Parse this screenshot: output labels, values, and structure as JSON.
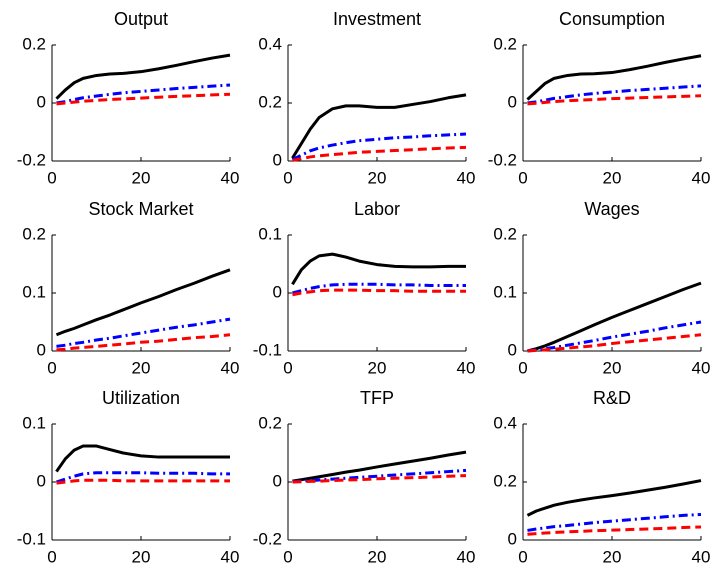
{
  "chart_data": [
    {
      "type": "line",
      "title": "Output",
      "x": [
        1,
        3,
        5,
        7,
        10,
        13,
        16,
        20,
        24,
        28,
        32,
        36,
        40
      ],
      "xlim": [
        0,
        40
      ],
      "xticks": [
        0,
        20,
        40
      ],
      "ylim": [
        -0.2,
        0.2
      ],
      "yticks": [
        -0.2,
        0,
        0.2
      ],
      "series": [
        {
          "color": "#000000",
          "dash": "solid",
          "values": [
            0.015,
            0.045,
            0.07,
            0.085,
            0.095,
            0.1,
            0.102,
            0.108,
            0.118,
            0.13,
            0.143,
            0.155,
            0.165
          ]
        },
        {
          "color": "#0000ff",
          "dash": "dashdot",
          "values": [
            0,
            0.005,
            0.012,
            0.018,
            0.024,
            0.03,
            0.035,
            0.04,
            0.045,
            0.05,
            0.054,
            0.058,
            0.062
          ]
        },
        {
          "color": "#ff0000",
          "dash": "dashed",
          "values": [
            -0.003,
            0,
            0.003,
            0.006,
            0.009,
            0.012,
            0.014,
            0.017,
            0.02,
            0.023,
            0.025,
            0.028,
            0.03
          ]
        }
      ]
    },
    {
      "type": "line",
      "title": "Investment",
      "x": [
        1,
        3,
        5,
        7,
        10,
        13,
        16,
        20,
        24,
        28,
        32,
        36,
        40
      ],
      "xlim": [
        0,
        40
      ],
      "xticks": [
        0,
        20,
        40
      ],
      "ylim": [
        0,
        0.4
      ],
      "yticks": [
        0,
        0.2,
        0.4
      ],
      "series": [
        {
          "color": "#000000",
          "dash": "solid",
          "values": [
            0.01,
            0.06,
            0.11,
            0.15,
            0.18,
            0.19,
            0.19,
            0.185,
            0.185,
            0.195,
            0.205,
            0.218,
            0.228
          ]
        },
        {
          "color": "#0000ff",
          "dash": "dashdot",
          "values": [
            0.005,
            0.02,
            0.035,
            0.045,
            0.055,
            0.063,
            0.07,
            0.075,
            0.08,
            0.083,
            0.087,
            0.09,
            0.093
          ]
        },
        {
          "color": "#ff0000",
          "dash": "dashed",
          "values": [
            0.002,
            0.008,
            0.014,
            0.018,
            0.022,
            0.026,
            0.03,
            0.033,
            0.036,
            0.039,
            0.042,
            0.045,
            0.047
          ]
        }
      ]
    },
    {
      "type": "line",
      "title": "Consumption",
      "x": [
        1,
        3,
        5,
        7,
        10,
        13,
        16,
        20,
        24,
        28,
        32,
        36,
        40
      ],
      "xlim": [
        0,
        40
      ],
      "xticks": [
        0,
        20,
        40
      ],
      "ylim": [
        -0.2,
        0.2
      ],
      "yticks": [
        -0.2,
        0,
        0.2
      ],
      "series": [
        {
          "color": "#000000",
          "dash": "solid",
          "values": [
            0.012,
            0.04,
            0.068,
            0.085,
            0.095,
            0.1,
            0.101,
            0.105,
            0.115,
            0.127,
            0.14,
            0.152,
            0.163
          ]
        },
        {
          "color": "#0000ff",
          "dash": "dashdot",
          "values": [
            0,
            0.004,
            0.01,
            0.016,
            0.022,
            0.028,
            0.033,
            0.038,
            0.043,
            0.047,
            0.051,
            0.055,
            0.059
          ]
        },
        {
          "color": "#ff0000",
          "dash": "dashed",
          "values": [
            -0.003,
            -0.001,
            0.002,
            0.005,
            0.008,
            0.01,
            0.012,
            0.015,
            0.017,
            0.019,
            0.021,
            0.023,
            0.025
          ]
        }
      ]
    },
    {
      "type": "line",
      "title": "Stock Market",
      "x": [
        1,
        3,
        5,
        7,
        10,
        13,
        16,
        20,
        24,
        28,
        32,
        36,
        40
      ],
      "xlim": [
        0,
        40
      ],
      "xticks": [
        0,
        20,
        40
      ],
      "ylim": [
        0,
        0.2
      ],
      "yticks": [
        0,
        0.1,
        0.2
      ],
      "series": [
        {
          "color": "#000000",
          "dash": "solid",
          "values": [
            0.028,
            0.034,
            0.039,
            0.045,
            0.054,
            0.062,
            0.071,
            0.083,
            0.094,
            0.106,
            0.117,
            0.129,
            0.14
          ]
        },
        {
          "color": "#0000ff",
          "dash": "dashdot",
          "values": [
            0.008,
            0.01,
            0.013,
            0.015,
            0.019,
            0.022,
            0.026,
            0.031,
            0.036,
            0.041,
            0.045,
            0.05,
            0.055
          ]
        },
        {
          "color": "#ff0000",
          "dash": "dashed",
          "values": [
            0.002,
            0.003,
            0.005,
            0.006,
            0.008,
            0.01,
            0.012,
            0.015,
            0.017,
            0.02,
            0.023,
            0.025,
            0.028
          ]
        }
      ]
    },
    {
      "type": "line",
      "title": "Labor",
      "x": [
        1,
        3,
        5,
        7,
        10,
        13,
        16,
        20,
        24,
        28,
        32,
        36,
        40
      ],
      "xlim": [
        0,
        40
      ],
      "xticks": [
        0,
        20,
        40
      ],
      "ylim": [
        -0.1,
        0.1
      ],
      "yticks": [
        -0.1,
        0,
        0.1
      ],
      "series": [
        {
          "color": "#000000",
          "dash": "solid",
          "values": [
            0.015,
            0.04,
            0.055,
            0.064,
            0.067,
            0.062,
            0.055,
            0.049,
            0.046,
            0.045,
            0.045,
            0.046,
            0.046
          ]
        },
        {
          "color": "#0000ff",
          "dash": "dashdot",
          "values": [
            0,
            0.004,
            0.008,
            0.011,
            0.014,
            0.015,
            0.015,
            0.015,
            0.014,
            0.014,
            0.013,
            0.013,
            0.013
          ]
        },
        {
          "color": "#ff0000",
          "dash": "dashed",
          "values": [
            -0.003,
            0,
            0.002,
            0.004,
            0.005,
            0.005,
            0.005,
            0.004,
            0.004,
            0.003,
            0.003,
            0.003,
            0.003
          ]
        }
      ]
    },
    {
      "type": "line",
      "title": "Wages",
      "x": [
        1,
        3,
        5,
        7,
        10,
        13,
        16,
        20,
        24,
        28,
        32,
        36,
        40
      ],
      "xlim": [
        0,
        40
      ],
      "xticks": [
        0,
        20,
        40
      ],
      "ylim": [
        0,
        0.2
      ],
      "yticks": [
        0,
        0.1,
        0.2
      ],
      "series": [
        {
          "color": "#000000",
          "dash": "solid",
          "values": [
            0,
            0.004,
            0.009,
            0.015,
            0.025,
            0.035,
            0.045,
            0.058,
            0.07,
            0.082,
            0.094,
            0.106,
            0.117
          ]
        },
        {
          "color": "#0000ff",
          "dash": "dashdot",
          "values": [
            0,
            0.002,
            0.004,
            0.006,
            0.01,
            0.014,
            0.018,
            0.024,
            0.029,
            0.034,
            0.04,
            0.045,
            0.05
          ]
        },
        {
          "color": "#ff0000",
          "dash": "dashed",
          "values": [
            0,
            0.001,
            0.002,
            0.003,
            0.005,
            0.007,
            0.009,
            0.013,
            0.016,
            0.019,
            0.022,
            0.025,
            0.028
          ]
        }
      ]
    },
    {
      "type": "line",
      "title": "Utilization",
      "x": [
        1,
        3,
        5,
        7,
        10,
        13,
        16,
        20,
        24,
        28,
        32,
        36,
        40
      ],
      "xlim": [
        0,
        40
      ],
      "xticks": [
        0,
        20,
        40
      ],
      "ylim": [
        -0.1,
        0.1
      ],
      "yticks": [
        -0.1,
        0,
        0.1
      ],
      "series": [
        {
          "color": "#000000",
          "dash": "solid",
          "values": [
            0.018,
            0.04,
            0.055,
            0.062,
            0.062,
            0.056,
            0.05,
            0.045,
            0.043,
            0.043,
            0.043,
            0.043,
            0.043
          ]
        },
        {
          "color": "#0000ff",
          "dash": "dashdot",
          "values": [
            0,
            0.005,
            0.01,
            0.014,
            0.016,
            0.016,
            0.016,
            0.016,
            0.015,
            0.015,
            0.015,
            0.014,
            0.014
          ]
        },
        {
          "color": "#ff0000",
          "dash": "dashed",
          "values": [
            -0.002,
            0,
            0.002,
            0.003,
            0.003,
            0.003,
            0.002,
            0.002,
            0.002,
            0.002,
            0.002,
            0.002,
            0.002
          ]
        }
      ]
    },
    {
      "type": "line",
      "title": "TFP",
      "x": [
        1,
        3,
        5,
        7,
        10,
        13,
        16,
        20,
        24,
        28,
        32,
        36,
        40
      ],
      "xlim": [
        0,
        40
      ],
      "xticks": [
        0,
        20,
        40
      ],
      "ylim": [
        -0.2,
        0.2
      ],
      "yticks": [
        -0.2,
        0,
        0.2
      ],
      "series": [
        {
          "color": "#000000",
          "dash": "solid",
          "values": [
            0.003,
            0.008,
            0.013,
            0.018,
            0.026,
            0.034,
            0.041,
            0.052,
            0.062,
            0.072,
            0.082,
            0.093,
            0.103
          ]
        },
        {
          "color": "#0000ff",
          "dash": "dashdot",
          "values": [
            0.001,
            0.003,
            0.005,
            0.007,
            0.01,
            0.013,
            0.016,
            0.02,
            0.024,
            0.028,
            0.032,
            0.036,
            0.04
          ]
        },
        {
          "color": "#ff0000",
          "dash": "dashed",
          "values": [
            0,
            0.001,
            0.002,
            0.003,
            0.005,
            0.007,
            0.008,
            0.011,
            0.013,
            0.015,
            0.017,
            0.02,
            0.022
          ]
        }
      ]
    },
    {
      "type": "line",
      "title": "R&D",
      "x": [
        1,
        3,
        5,
        7,
        10,
        13,
        16,
        20,
        24,
        28,
        32,
        36,
        40
      ],
      "xlim": [
        0,
        40
      ],
      "xticks": [
        0,
        20,
        40
      ],
      "ylim": [
        0,
        0.4
      ],
      "yticks": [
        0,
        0.2,
        0.4
      ],
      "series": [
        {
          "color": "#000000",
          "dash": "solid",
          "values": [
            0.085,
            0.1,
            0.11,
            0.12,
            0.13,
            0.138,
            0.145,
            0.153,
            0.162,
            0.172,
            0.182,
            0.193,
            0.205
          ]
        },
        {
          "color": "#0000ff",
          "dash": "dashdot",
          "values": [
            0.033,
            0.038,
            0.042,
            0.046,
            0.05,
            0.055,
            0.06,
            0.065,
            0.07,
            0.075,
            0.08,
            0.085,
            0.088
          ]
        },
        {
          "color": "#ff0000",
          "dash": "dashed",
          "values": [
            0.02,
            0.022,
            0.024,
            0.026,
            0.028,
            0.03,
            0.032,
            0.034,
            0.036,
            0.038,
            0.04,
            0.043,
            0.045
          ]
        }
      ]
    }
  ]
}
